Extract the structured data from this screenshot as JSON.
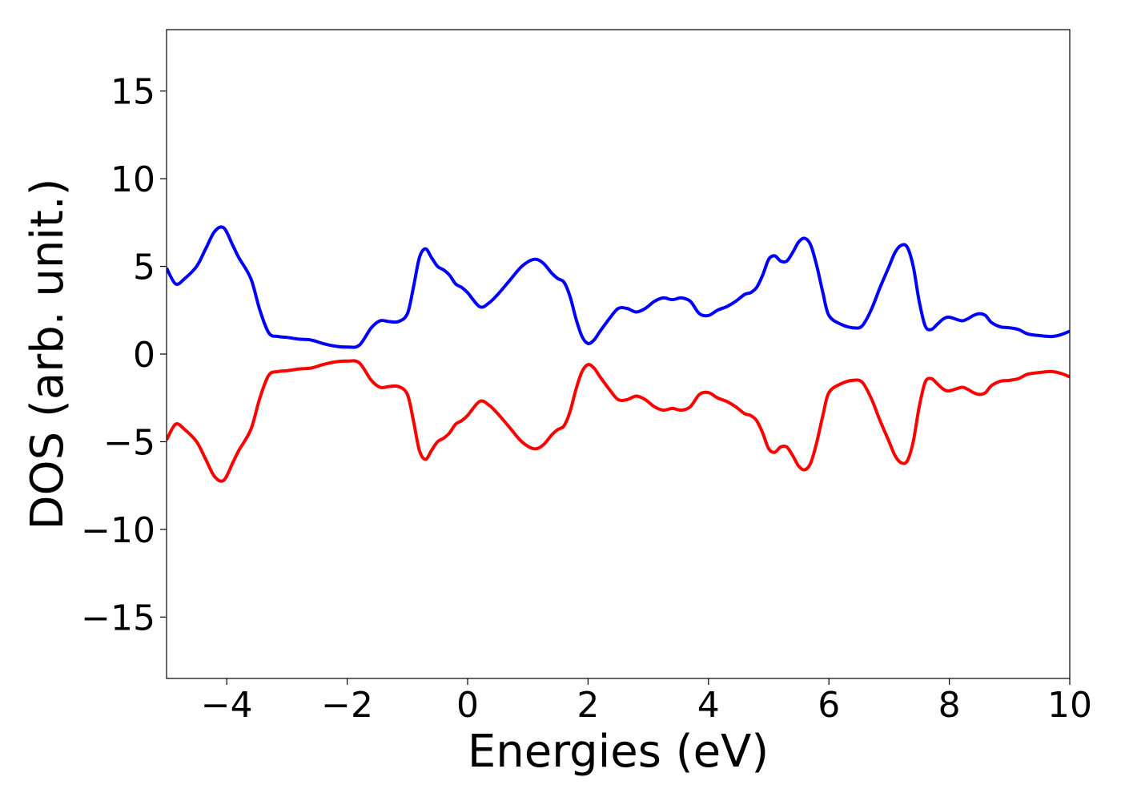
{
  "chart_data": {
    "type": "line",
    "title": "",
    "xlabel": "Energies (eV)",
    "ylabel": "DOS (arb. unit.)",
    "xlim": [
      -5,
      10
    ],
    "ylim": [
      -18.5,
      18.5
    ],
    "xticks": [
      -4,
      -2,
      0,
      2,
      4,
      6,
      8,
      10
    ],
    "xtick_labels": [
      "−4",
      "−2",
      "0",
      "2",
      "4",
      "6",
      "8",
      "10"
    ],
    "yticks": [
      15,
      10,
      5,
      0,
      -5,
      -10,
      -15
    ],
    "ytick_labels": [
      "15",
      "10",
      "5",
      "0",
      "−5",
      "−10",
      "−15"
    ],
    "grid": false,
    "legend": "none",
    "series": [
      {
        "color": "#0000ff",
        "x": [
          -5.0,
          -4.85,
          -4.7,
          -4.5,
          -4.35,
          -4.2,
          -4.05,
          -3.9,
          -3.8,
          -3.6,
          -3.45,
          -3.3,
          -3.15,
          -3.0,
          -2.8,
          -2.6,
          -2.4,
          -2.2,
          -2.0,
          -1.8,
          -1.6,
          -1.45,
          -1.3,
          -1.15,
          -1.0,
          -0.9,
          -0.8,
          -0.7,
          -0.6,
          -0.5,
          -0.4,
          -0.3,
          -0.2,
          -0.1,
          0.0,
          0.2,
          0.35,
          0.5,
          0.7,
          0.9,
          1.1,
          1.25,
          1.4,
          1.5,
          1.6,
          1.7,
          1.8,
          1.9,
          2.0,
          2.1,
          2.2,
          2.35,
          2.5,
          2.65,
          2.8,
          2.95,
          3.1,
          3.25,
          3.4,
          3.55,
          3.7,
          3.85,
          4.0,
          4.15,
          4.3,
          4.45,
          4.6,
          4.7,
          4.8,
          4.9,
          5.0,
          5.1,
          5.2,
          5.3,
          5.4,
          5.5,
          5.6,
          5.7,
          5.8,
          5.9,
          6.0,
          6.2,
          6.4,
          6.55,
          6.7,
          6.85,
          7.0,
          7.1,
          7.2,
          7.3,
          7.4,
          7.5,
          7.6,
          7.7,
          7.8,
          7.9,
          8.0,
          8.2,
          8.3,
          8.4,
          8.5,
          8.6,
          8.7,
          8.85,
          9.0,
          9.15,
          9.3,
          9.5,
          9.7,
          9.85,
          10.0
        ],
        "y": [
          4.9,
          4.0,
          4.3,
          5.0,
          6.0,
          7.0,
          7.2,
          6.2,
          5.5,
          4.3,
          2.5,
          1.2,
          1.0,
          0.95,
          0.85,
          0.8,
          0.6,
          0.45,
          0.4,
          0.5,
          1.5,
          1.9,
          1.85,
          1.85,
          2.3,
          3.8,
          5.5,
          6.0,
          5.5,
          5.0,
          4.8,
          4.5,
          4.0,
          3.8,
          3.5,
          2.7,
          2.9,
          3.4,
          4.2,
          5.0,
          5.4,
          5.2,
          4.6,
          4.3,
          4.1,
          3.3,
          2.0,
          1.0,
          0.6,
          0.8,
          1.3,
          2.0,
          2.6,
          2.6,
          2.4,
          2.6,
          3.0,
          3.2,
          3.1,
          3.2,
          3.0,
          2.3,
          2.2,
          2.5,
          2.7,
          3.0,
          3.4,
          3.5,
          3.8,
          4.5,
          5.4,
          5.6,
          5.3,
          5.3,
          5.8,
          6.4,
          6.6,
          6.2,
          5.0,
          3.5,
          2.2,
          1.7,
          1.5,
          1.6,
          2.5,
          3.8,
          5.0,
          5.8,
          6.2,
          6.1,
          5.0,
          3.0,
          1.6,
          1.4,
          1.7,
          2.0,
          2.1,
          1.9,
          2.0,
          2.2,
          2.3,
          2.2,
          1.8,
          1.55,
          1.5,
          1.4,
          1.15,
          1.05,
          1.0,
          1.1,
          1.3
        ]
      },
      {
        "color": "#ff0000",
        "x": [
          -5.0,
          -4.85,
          -4.7,
          -4.5,
          -4.35,
          -4.2,
          -4.05,
          -3.9,
          -3.8,
          -3.6,
          -3.45,
          -3.3,
          -3.15,
          -3.0,
          -2.8,
          -2.6,
          -2.4,
          -2.2,
          -2.0,
          -1.8,
          -1.6,
          -1.45,
          -1.3,
          -1.15,
          -1.0,
          -0.9,
          -0.8,
          -0.7,
          -0.6,
          -0.5,
          -0.4,
          -0.3,
          -0.2,
          -0.1,
          0.0,
          0.2,
          0.35,
          0.5,
          0.7,
          0.9,
          1.1,
          1.25,
          1.4,
          1.5,
          1.6,
          1.7,
          1.8,
          1.9,
          2.0,
          2.1,
          2.2,
          2.35,
          2.5,
          2.65,
          2.8,
          2.95,
          3.1,
          3.25,
          3.4,
          3.55,
          3.7,
          3.85,
          4.0,
          4.15,
          4.3,
          4.45,
          4.6,
          4.7,
          4.8,
          4.9,
          5.0,
          5.1,
          5.2,
          5.3,
          5.4,
          5.5,
          5.6,
          5.7,
          5.8,
          5.9,
          6.0,
          6.2,
          6.4,
          6.55,
          6.7,
          6.85,
          7.0,
          7.1,
          7.2,
          7.3,
          7.4,
          7.5,
          7.6,
          7.7,
          7.8,
          7.9,
          8.0,
          8.2,
          8.3,
          8.4,
          8.5,
          8.6,
          8.7,
          8.85,
          9.0,
          9.15,
          9.3,
          9.5,
          9.7,
          9.85,
          10.0
        ],
        "y": [
          -4.9,
          -4.0,
          -4.3,
          -5.0,
          -6.0,
          -7.0,
          -7.2,
          -6.2,
          -5.5,
          -4.3,
          -2.5,
          -1.2,
          -1.0,
          -0.95,
          -0.85,
          -0.8,
          -0.6,
          -0.45,
          -0.4,
          -0.5,
          -1.5,
          -1.9,
          -1.85,
          -1.85,
          -2.3,
          -3.8,
          -5.5,
          -6.0,
          -5.5,
          -5.0,
          -4.8,
          -4.5,
          -4.0,
          -3.8,
          -3.5,
          -2.7,
          -2.9,
          -3.4,
          -4.2,
          -5.0,
          -5.4,
          -5.2,
          -4.6,
          -4.3,
          -4.1,
          -3.3,
          -2.0,
          -1.0,
          -0.6,
          -0.8,
          -1.3,
          -2.0,
          -2.6,
          -2.6,
          -2.4,
          -2.6,
          -3.0,
          -3.2,
          -3.1,
          -3.2,
          -3.0,
          -2.3,
          -2.2,
          -2.5,
          -2.7,
          -3.0,
          -3.4,
          -3.5,
          -3.8,
          -4.5,
          -5.4,
          -5.6,
          -5.3,
          -5.3,
          -5.8,
          -6.4,
          -6.6,
          -6.2,
          -5.0,
          -3.5,
          -2.2,
          -1.7,
          -1.5,
          -1.6,
          -2.5,
          -3.8,
          -5.0,
          -5.8,
          -6.2,
          -6.1,
          -5.0,
          -3.0,
          -1.6,
          -1.4,
          -1.7,
          -2.0,
          -2.1,
          -1.9,
          -2.0,
          -2.2,
          -2.3,
          -2.2,
          -1.8,
          -1.55,
          -1.5,
          -1.4,
          -1.15,
          -1.05,
          -1.0,
          -1.1,
          -1.3
        ]
      }
    ]
  }
}
